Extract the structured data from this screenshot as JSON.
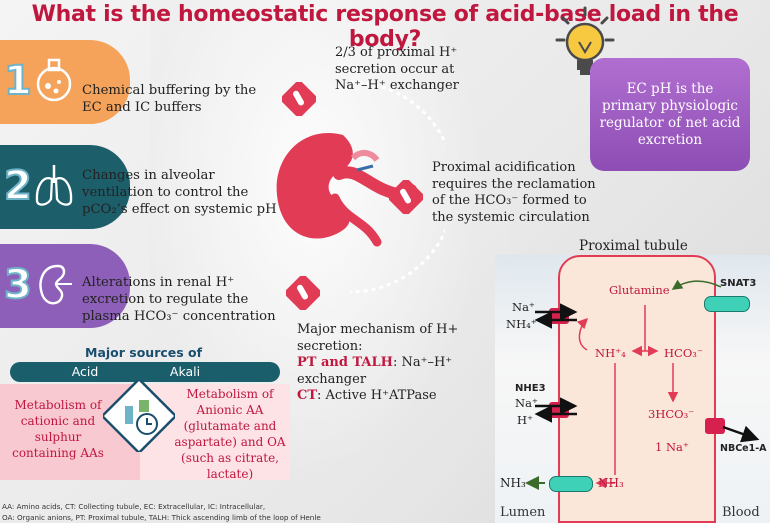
{
  "title": "What is the homeostatic response of  acid-base load in the body?",
  "steps": [
    {
      "number": "1",
      "text": "Chemical buffering by the EC and IC buffers"
    },
    {
      "number": "2",
      "text": "Changes in alveolar ventilation to control the pCO₂’s effect on systemic pH"
    },
    {
      "number": "3",
      "text": "Alterations in renal H⁺ excretion to regulate the plasma HCO₃⁻ concentration"
    }
  ],
  "sources": {
    "heading": "Major sources of",
    "acid_label": "Acid",
    "alkali_label": "Akali",
    "acid_text": "Metabolism of cationic and sulphur containing AAs",
    "alkali_text": "Metabolism of Anionic AA (glutamate and aspartate) and OA (such as citrate, lactate)"
  },
  "footnote_1": "AA: Amino acids, CT: Collecting tubule,  EC: Extracellular, IC: Intracellular,",
  "footnote_2": "OA: Organic anions, PT: Proximal tubule, TALH: Thick ascending limb of the loop of Henle",
  "kidney_notes": {
    "top": "2/3 of proximal H⁺ secretion occur at Na⁺–H⁺ exchanger",
    "right": "Proximal acidification requires the reclamation of  the HCO₃⁻ formed to the systemic circulation",
    "mech_head": "Major mechanism of H+ secretion:",
    "mech_pt_label": "PT and TALH",
    "mech_pt_text": ": Na⁺–H⁺ exchanger",
    "mech_ct_label": "CT",
    "mech_ct_text": ": Active H⁺ATPase"
  },
  "ec_box": "EC pH is the primary physiologic regulator of net acid excretion",
  "tubule": {
    "title": "Proximal tubule",
    "glutamine": "Glutamine",
    "snat3": "SNAT3",
    "na_top": "Na⁺",
    "nh4_top": "NH₄⁺",
    "nh4_cell": "NH⁺₄",
    "hco3_cell": "HCO₃⁻",
    "nhe3": "NHE3",
    "na_mid": "Na⁺",
    "h_mid": "H⁺",
    "three_hco3": "3HCO₃⁻",
    "one_na": "1 Na⁺",
    "nbce1": "NBCe1-A",
    "nh3_out": "NH₃",
    "nh3_in": "NH₃",
    "lumen": "Lumen",
    "blood": "Blood"
  },
  "colors": {
    "title": "#c0173f",
    "step1": "#f5a25a",
    "step2": "#1d5e6b",
    "step3": "#8d5fb8",
    "accent": "#e8365d"
  }
}
